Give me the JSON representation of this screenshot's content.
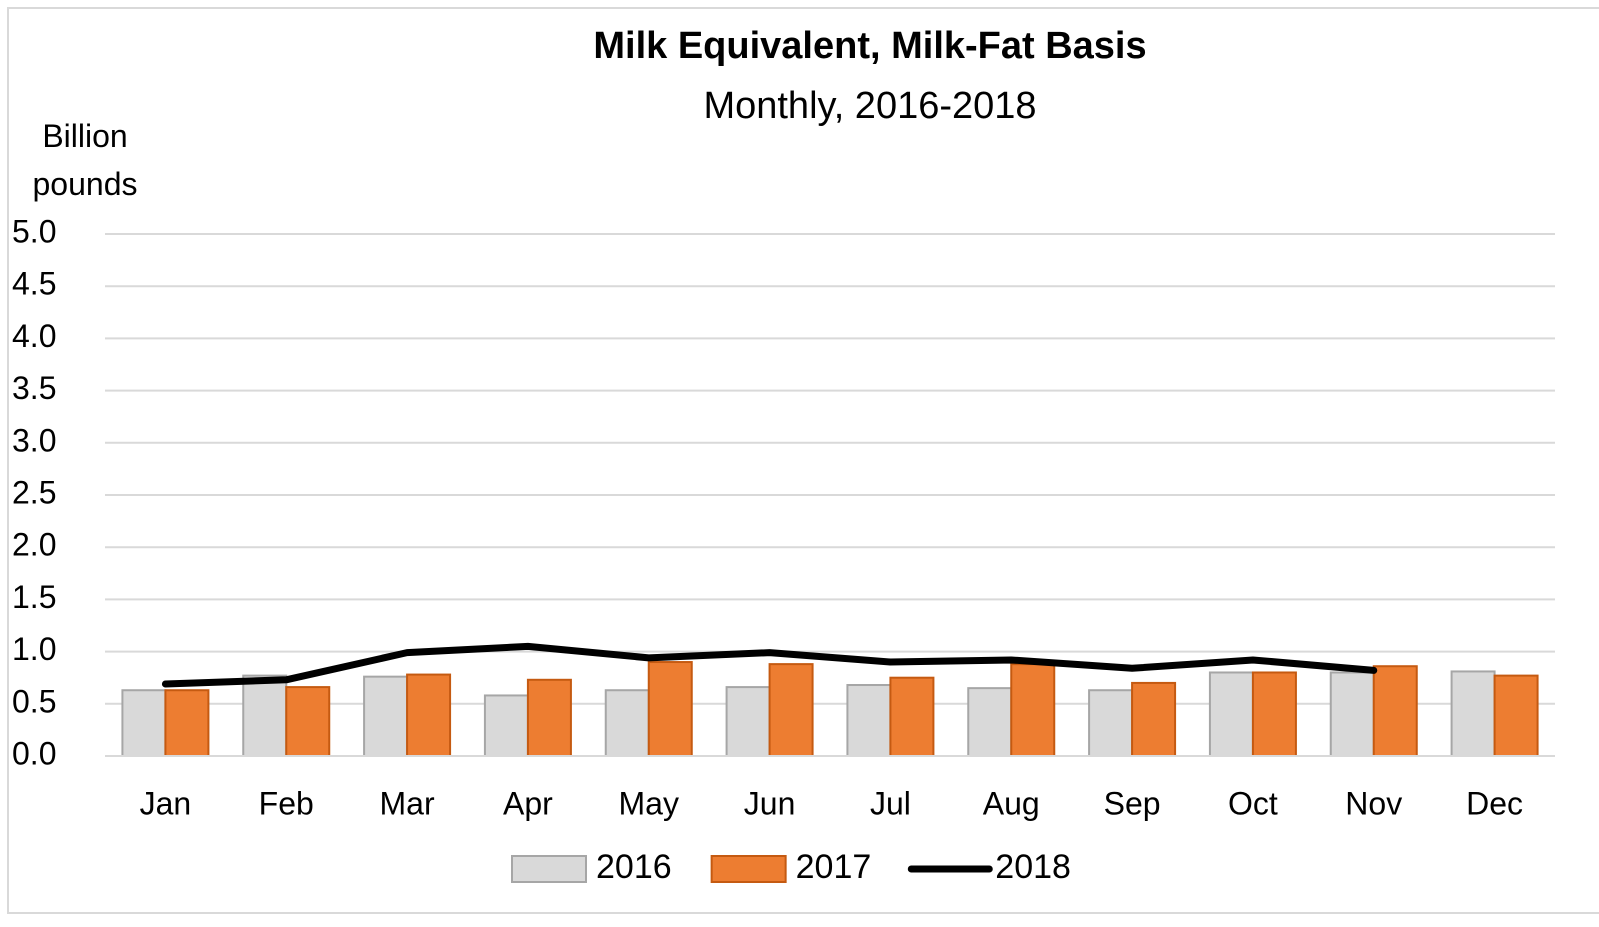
{
  "chart_data": {
    "type": "bar",
    "title": "Milk Equivalent, Milk-Fat Basis",
    "subtitle": "Monthly, 2016-2018",
    "y_label": "Billion pounds",
    "categories": [
      "Jan",
      "Feb",
      "Mar",
      "Apr",
      "May",
      "Jun",
      "Jul",
      "Aug",
      "Sep",
      "Oct",
      "Nov",
      "Dec"
    ],
    "series": [
      {
        "name": "2016",
        "type": "bar",
        "color": "#d9d9d9",
        "values": [
          0.63,
          0.77,
          0.76,
          0.58,
          0.63,
          0.66,
          0.68,
          0.65,
          0.63,
          0.8,
          0.8,
          0.81
        ]
      },
      {
        "name": "2017",
        "type": "bar",
        "color": "#ed7d31",
        "values": [
          0.63,
          0.66,
          0.78,
          0.73,
          0.9,
          0.88,
          0.75,
          0.88,
          0.7,
          0.8,
          0.86,
          0.77
        ]
      },
      {
        "name": "2018",
        "type": "line",
        "color": "#000000",
        "values": [
          0.69,
          0.73,
          0.99,
          1.05,
          0.94,
          0.99,
          0.9,
          0.92,
          0.84,
          0.92,
          0.82,
          null
        ]
      }
    ],
    "ylim": [
      0,
      5
    ],
    "yticks": [
      {
        "value": 0,
        "label": "0.0"
      },
      {
        "value": 0.5,
        "label": "0.5"
      },
      {
        "value": 1,
        "label": "1.0"
      },
      {
        "value": 1.5,
        "label": "1.5"
      },
      {
        "value": 2,
        "label": "2.0"
      },
      {
        "value": 2.5,
        "label": "2.5"
      },
      {
        "value": 3,
        "label": "3.0"
      },
      {
        "value": 3.5,
        "label": "3.5"
      },
      {
        "value": 4,
        "label": "4.0"
      },
      {
        "value": 4.5,
        "label": "4.5"
      },
      {
        "value": 5,
        "label": "5.0"
      }
    ],
    "grid": true,
    "legend": "bottom"
  }
}
